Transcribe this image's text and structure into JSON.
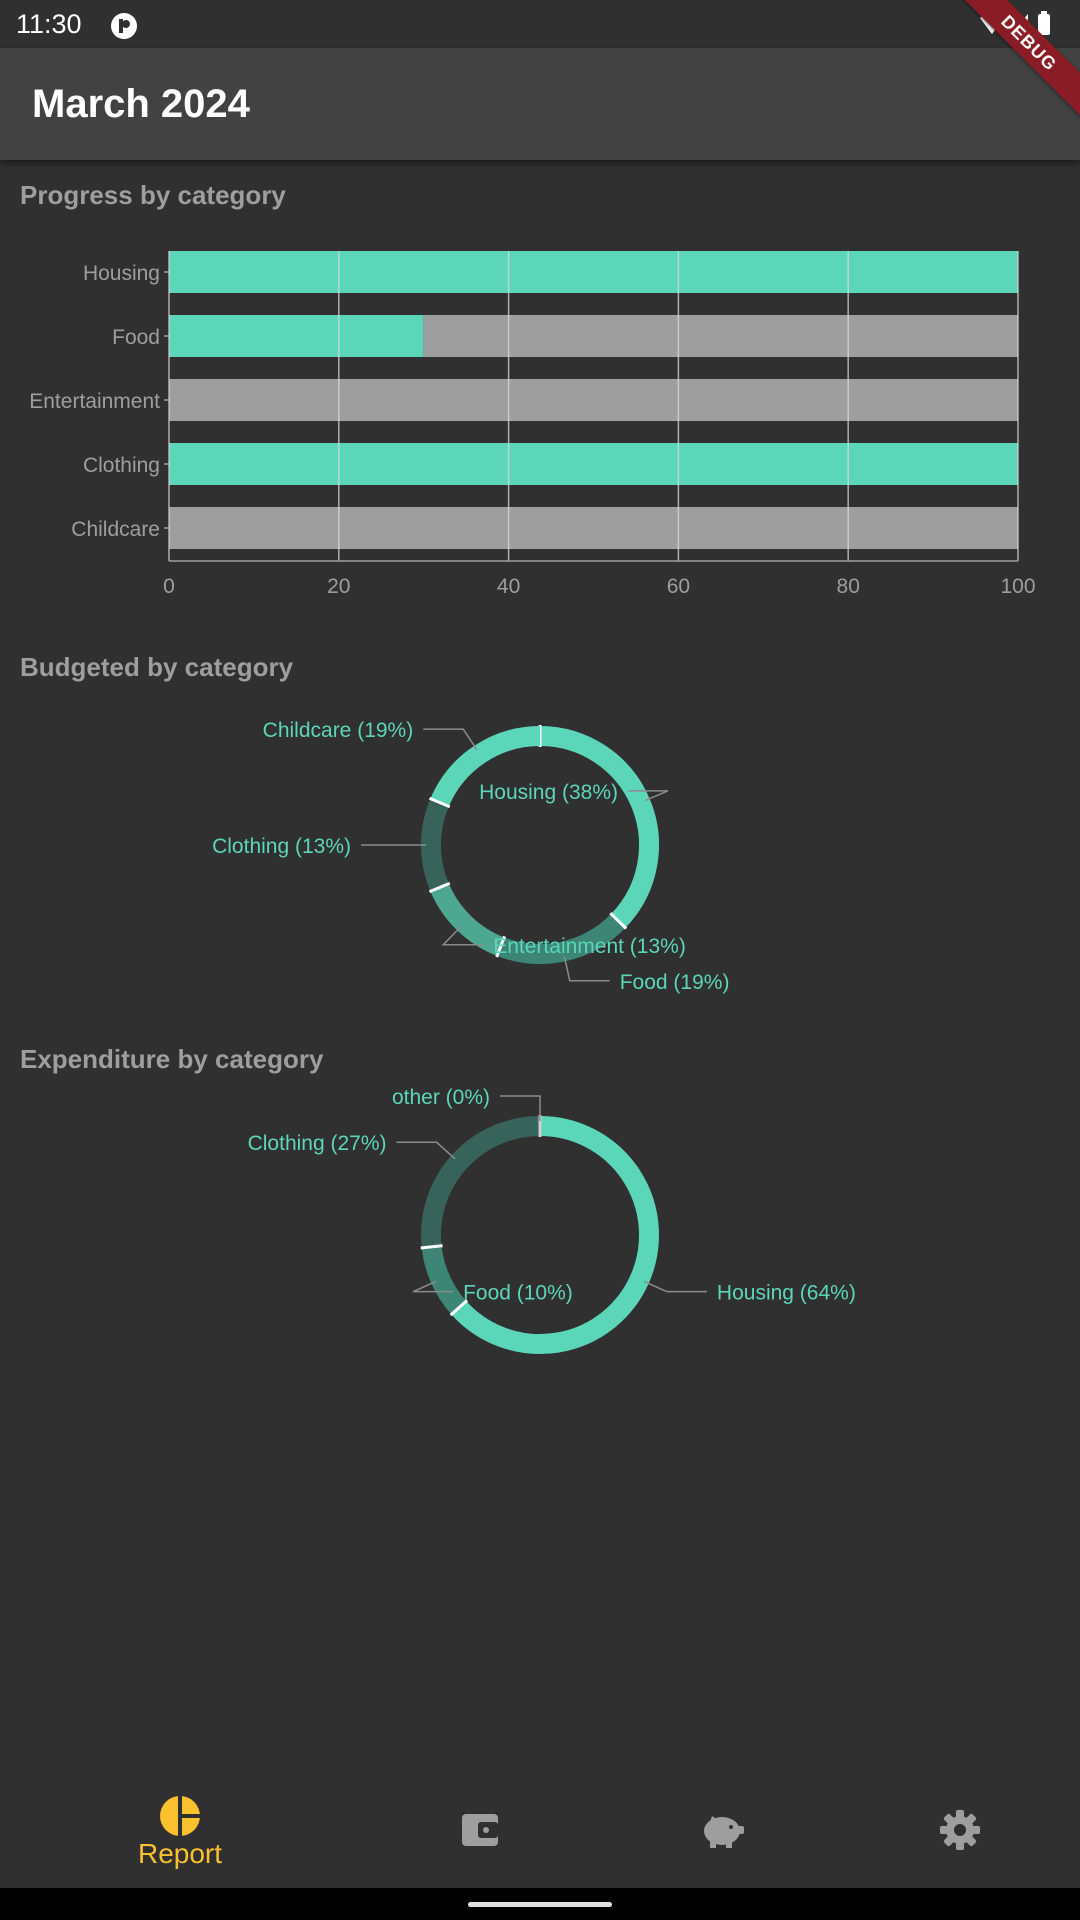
{
  "status_bar": {
    "time": "11:30"
  },
  "app_bar": {
    "title": "March 2024",
    "debug_label": "DEBUG"
  },
  "sections": {
    "progress": "Progress by category",
    "budgeted": "Budgeted by category",
    "expenditure": "Expenditure by category"
  },
  "chart_data": [
    {
      "type": "bar",
      "orientation": "horizontal",
      "stacked": true,
      "title": "Progress by category",
      "categories": [
        "Housing",
        "Food",
        "Entertainment",
        "Clothing",
        "Childcare"
      ],
      "series": [
        {
          "values": [
            100,
            30,
            0,
            100,
            0
          ],
          "color": "#5cd6b8"
        },
        {
          "values": [
            0,
            70,
            100,
            0,
            100
          ],
          "color": "#9e9e9e"
        }
      ],
      "xlim": [
        0,
        100
      ],
      "xticks": [
        0,
        20,
        40,
        60,
        80,
        100
      ],
      "grid": true
    },
    {
      "type": "pie",
      "donut": true,
      "title": "Budgeted by category",
      "slices": [
        {
          "label": "Housing (38%)",
          "value": 38,
          "color": "#5cd6b8"
        },
        {
          "label": "Food (19%)",
          "value": 19,
          "color": "#3d8574"
        },
        {
          "label": "Entertainment (13%)",
          "value": 13,
          "color": "#4ea891"
        },
        {
          "label": "Clothing (13%)",
          "value": 13,
          "color": "#38635a"
        },
        {
          "label": "Childcare (19%)",
          "value": 19,
          "color": "#5cd6b8"
        }
      ]
    },
    {
      "type": "pie",
      "donut": true,
      "title": "Expenditure by category",
      "slices": [
        {
          "label": "Housing (64%)",
          "value": 64,
          "color": "#5cd6b8"
        },
        {
          "label": "Food (10%)",
          "value": 10,
          "color": "#3d8574"
        },
        {
          "label": "Clothing (27%)",
          "value": 27,
          "color": "#38635a"
        },
        {
          "label": "other (0%)",
          "value": 0,
          "color": "#5cd6b8"
        }
      ]
    }
  ],
  "colors": {
    "accent": "#5cd6b8",
    "remaining": "#9e9e9e",
    "nav_active": "#fbc02d",
    "nav_inactive": "#9e9e9e",
    "background": "#303030",
    "app_bar": "#424242"
  },
  "nav": {
    "items": [
      {
        "icon": "pie-chart-icon",
        "label": "Report",
        "active": true
      },
      {
        "icon": "wallet-icon",
        "active": false
      },
      {
        "icon": "piggy-bank-icon",
        "active": false
      },
      {
        "icon": "gear-icon",
        "active": false
      }
    ]
  }
}
